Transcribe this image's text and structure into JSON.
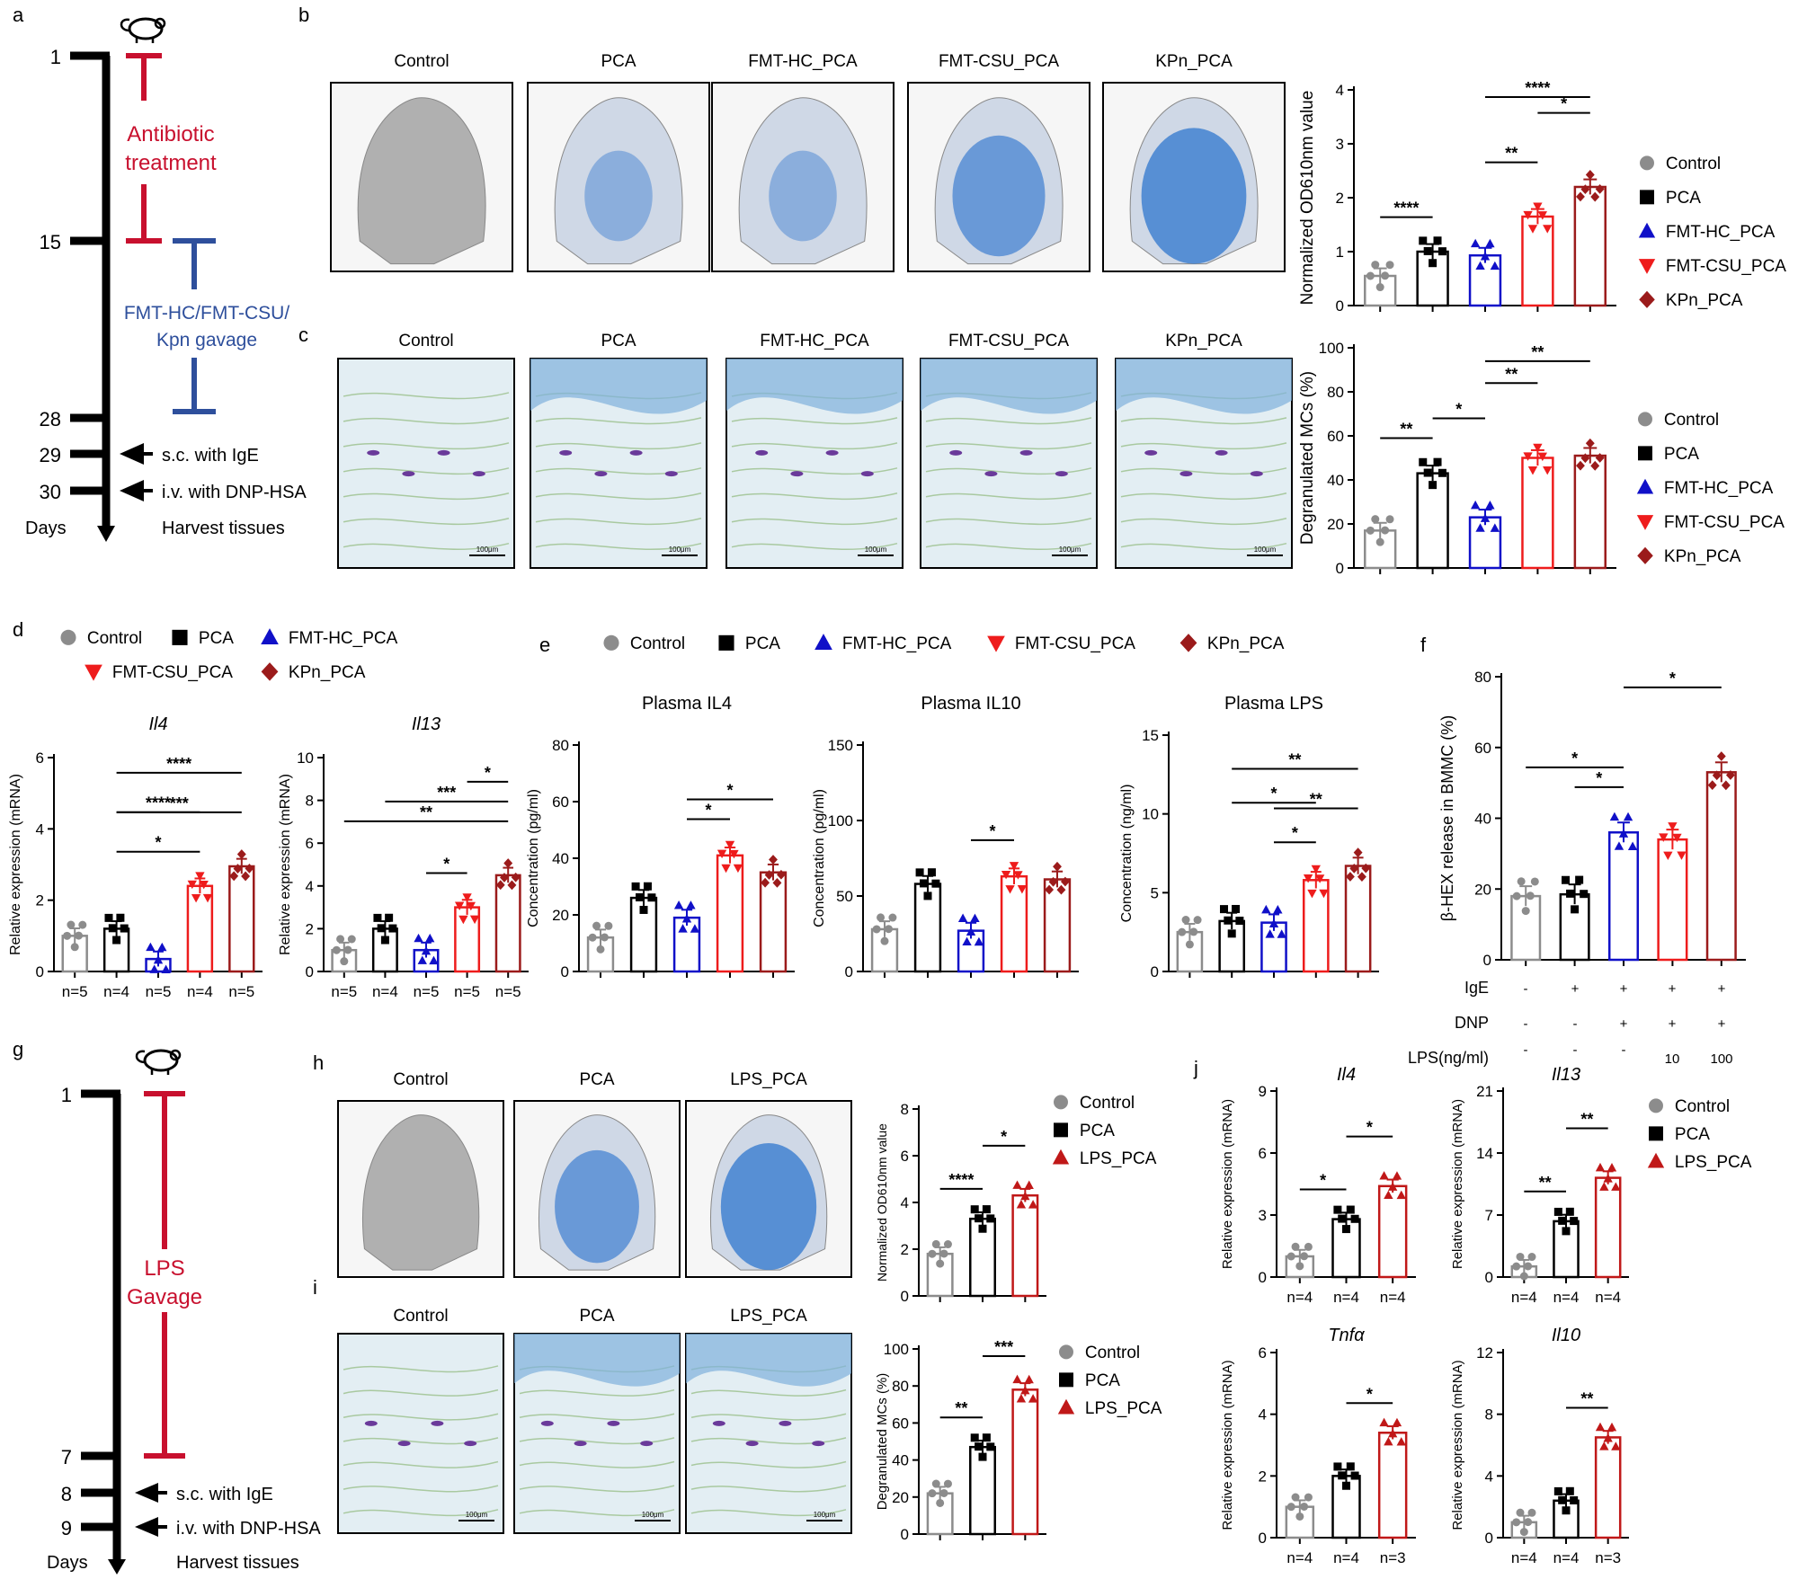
{
  "colors": {
    "control": "#8c8c8c",
    "pca": "#000000",
    "fmt_hc": "#1010c8",
    "fmt_csu": "#ee1c1c",
    "kpn": "#9b1b1b",
    "lps": "#c01818",
    "timeline_red": "#c8102e",
    "timeline_blue": "#2e4f9c",
    "stain_blue": "#3f7fd0",
    "ear_gray": "#b0b0b0"
  },
  "panels": {
    "a": {
      "letter": "a",
      "days": [
        "1",
        "15",
        "28",
        "29",
        "30"
      ],
      "antibiotic": [
        "Antibiotic",
        "treatment"
      ],
      "gavage": [
        "FMT-HC/FMT-CSU/",
        "Kpn gavage"
      ],
      "steps": [
        "s.c. with IgE",
        "i.v. with DNP-HSA",
        "Harvest tissues"
      ],
      "days_label": "Days"
    },
    "b": {
      "letter": "b",
      "titles": [
        "Control",
        "PCA",
        "FMT-HC_PCA",
        "FMT-CSU_PCA",
        "KPn_PCA"
      ]
    },
    "c": {
      "letter": "c",
      "titles": [
        "Control",
        "PCA",
        "FMT-HC_PCA",
        "FMT-CSU_PCA",
        "KPn_PCA"
      ],
      "scale": "100μm"
    },
    "d": {
      "letter": "d"
    },
    "e": {
      "letter": "e"
    },
    "f": {
      "letter": "f",
      "rows": [
        {
          "label": "IgE",
          "values": [
            "-",
            "+",
            "+",
            "+",
            "+"
          ]
        },
        {
          "label": "DNP",
          "values": [
            "-",
            "-",
            "+",
            "+",
            "+"
          ]
        },
        {
          "label": "LPS(ng/ml)",
          "values": [
            "-",
            "-",
            "-",
            "10",
            "100"
          ]
        }
      ]
    },
    "g": {
      "letter": "g",
      "days": [
        "1",
        "7",
        "8",
        "9"
      ],
      "gavage": [
        "LPS",
        "Gavage"
      ],
      "steps": [
        "s.c. with IgE",
        "i.v. with DNP-HSA",
        "Harvest tissues"
      ],
      "days_label": "Days"
    },
    "h": {
      "letter": "h",
      "titles": [
        "Control",
        "PCA",
        "LPS_PCA"
      ]
    },
    "i": {
      "letter": "i",
      "titles": [
        "Control",
        "PCA",
        "LPS_PCA"
      ],
      "scale": "100μm"
    },
    "j": {
      "letter": "j"
    }
  },
  "legends": {
    "five": [
      "Control",
      "PCA",
      "FMT-HC_PCA",
      "FMT-CSU_PCA",
      "KPn_PCA"
    ],
    "three": [
      "Control",
      "PCA",
      "LPS_PCA"
    ]
  },
  "chart_data": [
    {
      "id": "b_od",
      "type": "bar",
      "ylabel": "Normalized OD610nm value",
      "ylim": [
        0,
        4
      ],
      "yticks": [
        "0",
        "1",
        "2",
        "3",
        "4"
      ],
      "categories": [
        "Control",
        "PCA",
        "FMT-HC_PCA",
        "FMT-CSU_PCA",
        "KPn_PCA"
      ],
      "values": [
        0.55,
        1.0,
        0.93,
        1.65,
        2.2
      ],
      "significance": [
        [
          "Control",
          "PCA",
          "****"
        ],
        [
          "FMT-HC_PCA",
          "FMT-CSU_PCA",
          "**"
        ],
        [
          "FMT-CSU_PCA",
          "KPn_PCA",
          "*"
        ],
        [
          "FMT-HC_PCA",
          "KPn_PCA",
          "****"
        ]
      ]
    },
    {
      "id": "c_mc",
      "type": "bar",
      "ylabel": "Degranulated MCs (%)",
      "ylim": [
        0,
        100
      ],
      "yticks": [
        "0",
        "20",
        "40",
        "60",
        "80",
        "100"
      ],
      "categories": [
        "Control",
        "PCA",
        "FMT-HC_PCA",
        "FMT-CSU_PCA",
        "KPn_PCA"
      ],
      "values": [
        17,
        43,
        23,
        50,
        51
      ],
      "significance": [
        [
          "Control",
          "PCA",
          "**"
        ],
        [
          "PCA",
          "FMT-HC_PCA",
          "*"
        ],
        [
          "FMT-HC_PCA",
          "FMT-CSU_PCA",
          "**"
        ],
        [
          "FMT-HC_PCA",
          "KPn_PCA",
          "**"
        ]
      ]
    },
    {
      "id": "d_il4",
      "type": "bar",
      "title": "Il4",
      "ylabel": "Relative expression (mRNA)",
      "ylim": [
        0,
        6
      ],
      "yticks": [
        "0",
        "2",
        "4",
        "6"
      ],
      "categories": [
        "Control",
        "PCA",
        "FMT-HC_PCA",
        "FMT-CSU_PCA",
        "KPn_PCA"
      ],
      "values": [
        1.0,
        1.2,
        0.35,
        2.4,
        2.95
      ],
      "n": [
        "n=5",
        "n=4",
        "n=5",
        "n=4",
        "n=5"
      ],
      "significance": [
        [
          "PCA",
          "FMT-CSU_PCA",
          "*"
        ],
        [
          "PCA",
          "KPn_PCA",
          "***"
        ],
        [
          "PCA",
          "FMT-CSU_PCA",
          "****"
        ],
        [
          "PCA",
          "KPn_PCA",
          "****"
        ]
      ]
    },
    {
      "id": "d_il13",
      "type": "bar",
      "title": "Il13",
      "ylabel": "Relative expression (mRNA)",
      "ylim": [
        0,
        10
      ],
      "yticks": [
        "0",
        "2",
        "4",
        "6",
        "8",
        "10"
      ],
      "categories": [
        "Control",
        "PCA",
        "FMT-HC_PCA",
        "FMT-CSU_PCA",
        "KPn_PCA"
      ],
      "values": [
        1.0,
        2.0,
        1.0,
        3.0,
        4.5
      ],
      "n": [
        "n=5",
        "n=4",
        "n=5",
        "n=5",
        "n=5"
      ],
      "significance": [
        [
          "FMT-HC_PCA",
          "FMT-CSU_PCA",
          "*"
        ],
        [
          "Control",
          "KPn_PCA",
          "**"
        ],
        [
          "PCA",
          "KPn_PCA",
          "***"
        ],
        [
          "FMT-CSU_PCA",
          "KPn_PCA",
          "*"
        ]
      ]
    },
    {
      "id": "e_il4",
      "type": "bar",
      "title": "Plasma IL4",
      "ylabel": "Concentration (pg/ml)",
      "ylim": [
        0,
        80
      ],
      "yticks": [
        "0",
        "20",
        "40",
        "60",
        "80"
      ],
      "categories": [
        "Control",
        "PCA",
        "FMT-HC_PCA",
        "FMT-CSU_PCA",
        "KPn_PCA"
      ],
      "values": [
        12,
        26,
        19,
        41,
        35
      ],
      "significance": [
        [
          "FMT-HC_PCA",
          "FMT-CSU_PCA",
          "*"
        ],
        [
          "FMT-HC_PCA",
          "KPn_PCA",
          "*"
        ]
      ]
    },
    {
      "id": "e_il10",
      "type": "bar",
      "title": "Plasma IL10",
      "ylabel": "Concentration (pg/ml)",
      "ylim": [
        0,
        150
      ],
      "yticks": [
        "0",
        "50",
        "100",
        "150"
      ],
      "categories": [
        "Control",
        "PCA",
        "FMT-HC_PCA",
        "FMT-CSU_PCA",
        "KPn_PCA"
      ],
      "values": [
        28,
        58,
        27,
        63,
        61
      ],
      "significance": [
        [
          "FMT-HC_PCA",
          "FMT-CSU_PCA",
          "*"
        ]
      ]
    },
    {
      "id": "e_lps",
      "type": "bar",
      "title": "Plasma LPS",
      "ylabel": "Concentration (ng/ml)",
      "ylim": [
        0,
        15
      ],
      "yticks": [
        "0",
        "5",
        "10",
        "15"
      ],
      "categories": [
        "Control",
        "PCA",
        "FMT-HC_PCA",
        "FMT-CSU_PCA",
        "KPn_PCA"
      ],
      "values": [
        2.5,
        3.2,
        3.1,
        5.8,
        6.7
      ],
      "significance": [
        [
          "FMT-HC_PCA",
          "FMT-CSU_PCA",
          "*"
        ],
        [
          "FMT-HC_PCA",
          "KPn_PCA",
          "**"
        ],
        [
          "PCA",
          "FMT-CSU_PCA",
          "*"
        ],
        [
          "PCA",
          "KPn_PCA",
          "**"
        ]
      ]
    },
    {
      "id": "f_bhex",
      "type": "bar",
      "ylabel": "β-HEX release in BMMC (%)",
      "ylim": [
        0,
        80
      ],
      "yticks": [
        "0",
        "20",
        "40",
        "60",
        "80"
      ],
      "categories": [
        "1",
        "2",
        "3",
        "4",
        "5"
      ],
      "values": [
        18,
        18.5,
        36,
        34,
        53
      ],
      "significance": [
        [
          "2",
          "3",
          "*"
        ],
        [
          "1",
          "3",
          "*"
        ],
        [
          "3",
          "5",
          "*"
        ]
      ]
    },
    {
      "id": "h_od",
      "type": "bar",
      "ylabel": "Normalized OD610nm value",
      "ylim": [
        0,
        8
      ],
      "yticks": [
        "0",
        "2",
        "4",
        "6",
        "8"
      ],
      "categories": [
        "Control",
        "PCA",
        "LPS_PCA"
      ],
      "values": [
        1.8,
        3.3,
        4.3
      ],
      "significance": [
        [
          "Control",
          "PCA",
          "****"
        ],
        [
          "PCA",
          "LPS_PCA",
          "*"
        ]
      ]
    },
    {
      "id": "i_mc",
      "type": "bar",
      "ylabel": "Degranulated MCs (%)",
      "ylim": [
        0,
        100
      ],
      "yticks": [
        "0",
        "20",
        "40",
        "60",
        "80",
        "100"
      ],
      "categories": [
        "Control",
        "PCA",
        "LPS_PCA"
      ],
      "values": [
        22,
        47,
        78
      ],
      "significance": [
        [
          "Control",
          "PCA",
          "**"
        ],
        [
          "PCA",
          "LPS_PCA",
          "***"
        ]
      ]
    },
    {
      "id": "j_il4",
      "type": "bar",
      "title": "Il4",
      "ylabel": "Relative expression (mRNA)",
      "ylim": [
        0,
        9
      ],
      "yticks": [
        "0",
        "3",
        "6",
        "9"
      ],
      "categories": [
        "Control",
        "PCA",
        "LPS_PCA"
      ],
      "values": [
        1.0,
        2.8,
        4.4
      ],
      "n": [
        "n=4",
        "n=4",
        "n=4"
      ],
      "significance": [
        [
          "Control",
          "PCA",
          "*"
        ],
        [
          "PCA",
          "LPS_PCA",
          "*"
        ]
      ]
    },
    {
      "id": "j_il13",
      "type": "bar",
      "title": "Il13",
      "ylabel": "Relative expression (mRNA)",
      "ylim": [
        0,
        21
      ],
      "yticks": [
        "0",
        "7",
        "14",
        "21"
      ],
      "categories": [
        "Control",
        "PCA",
        "LPS_PCA"
      ],
      "values": [
        1.2,
        6.3,
        11.2
      ],
      "n": [
        "n=4",
        "n=4",
        "n=4"
      ],
      "significance": [
        [
          "Control",
          "PCA",
          "**"
        ],
        [
          "PCA",
          "LPS_PCA",
          "**"
        ]
      ]
    },
    {
      "id": "j_tnfa",
      "type": "bar",
      "title": "Tnfα",
      "ylabel": "Relative expression (mRNA)",
      "ylim": [
        0,
        6
      ],
      "yticks": [
        "0",
        "2",
        "4",
        "6"
      ],
      "categories": [
        "Control",
        "PCA",
        "LPS_PCA"
      ],
      "values": [
        1.0,
        2.0,
        3.4
      ],
      "n": [
        "n=4",
        "n=4",
        "n=3"
      ],
      "significance": [
        [
          "PCA",
          "LPS_PCA",
          "*"
        ]
      ]
    },
    {
      "id": "j_il10",
      "type": "bar",
      "title": "Il10",
      "ylabel": "Relative expression (mRNA)",
      "ylim": [
        0,
        12
      ],
      "yticks": [
        "0",
        "4",
        "8",
        "12"
      ],
      "categories": [
        "Control",
        "PCA",
        "LPS_PCA"
      ],
      "values": [
        1.0,
        2.4,
        6.5
      ],
      "n": [
        "n=4",
        "n=4",
        "n=3"
      ],
      "significance": [
        [
          "PCA",
          "LPS_PCA",
          "**"
        ]
      ]
    }
  ]
}
